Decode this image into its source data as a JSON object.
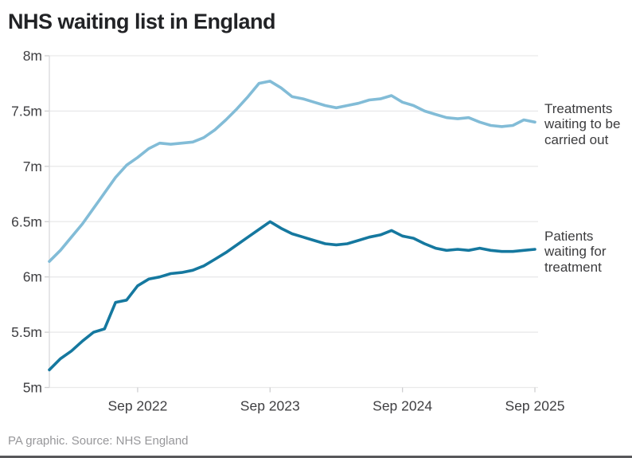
{
  "title": "NHS waiting list in England",
  "footer": {
    "source_line": "PA graphic. Source: NHS England"
  },
  "annotations": {
    "treatments_label": "Treatments waiting to be carried out",
    "patients_label": "Patients waiting for treatment"
  },
  "colors": {
    "treatments_line": "#82bcd7",
    "patients_line": "#15789f",
    "grid": "#e9e9ea",
    "axis": "#d9d9db",
    "tick": "#cfcfd1",
    "title_text": "#222326",
    "axis_text": "#3f3f42",
    "annotation_text": "#3c3c3e",
    "footer_text": "#97979a",
    "bottom_bar": "#58585a"
  },
  "chart_data": {
    "type": "line",
    "title": "NHS waiting list in England",
    "x_interval": "monthly",
    "x_range": [
      "Jan 2022",
      "Sep 2025"
    ],
    "x_tick_labels": [
      "Sep 2022",
      "Sep 2023",
      "Sep 2024",
      "Sep 2025"
    ],
    "x_tick_month_indices": [
      8,
      20,
      32,
      44
    ],
    "y_tick_labels": [
      "8m",
      "7.5m",
      "7m",
      "6.5m",
      "6m",
      "5.5m",
      "5m"
    ],
    "y_tick_values": [
      8,
      7.5,
      7,
      6.5,
      6,
      5.5,
      5
    ],
    "ylim": [
      5,
      8
    ],
    "unit": "millions",
    "grid": "horizontal",
    "legend_position": "right-annotations",
    "series": [
      {
        "name": "Treatments waiting to be carried out",
        "color": "#82bcd7",
        "values": [
          6.14,
          6.24,
          6.36,
          6.48,
          6.62,
          6.76,
          6.9,
          7.01,
          7.08,
          7.16,
          7.21,
          7.2,
          7.21,
          7.22,
          7.26,
          7.33,
          7.42,
          7.52,
          7.63,
          7.75,
          7.77,
          7.71,
          7.63,
          7.61,
          7.58,
          7.55,
          7.53,
          7.55,
          7.57,
          7.6,
          7.61,
          7.64,
          7.58,
          7.55,
          7.5,
          7.47,
          7.44,
          7.43,
          7.44,
          7.4,
          7.37,
          7.36,
          7.37,
          7.42,
          7.4
        ]
      },
      {
        "name": "Patients waiting for treatment",
        "color": "#15789f",
        "values": [
          5.16,
          5.26,
          5.33,
          5.42,
          5.5,
          5.53,
          5.77,
          5.79,
          5.92,
          5.98,
          6.0,
          6.03,
          6.04,
          6.06,
          6.1,
          6.16,
          6.22,
          6.29,
          6.36,
          6.43,
          6.5,
          6.44,
          6.39,
          6.36,
          6.33,
          6.3,
          6.29,
          6.3,
          6.33,
          6.36,
          6.38,
          6.42,
          6.37,
          6.35,
          6.3,
          6.26,
          6.24,
          6.25,
          6.24,
          6.26,
          6.24,
          6.23,
          6.23,
          6.24,
          6.25
        ]
      }
    ]
  }
}
